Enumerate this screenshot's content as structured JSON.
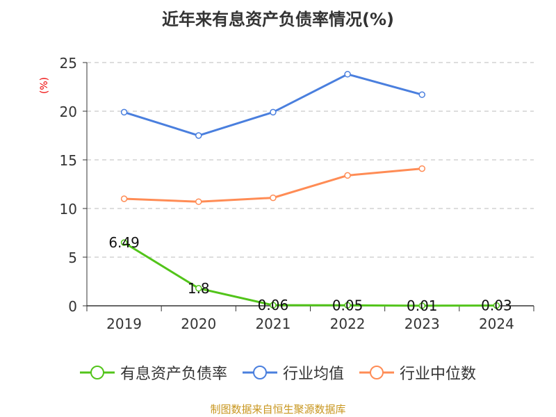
{
  "chart_data": {
    "type": "line",
    "title": "近年来有息资产负债率情况(%)",
    "ylabel": "(%)",
    "xlabel": "",
    "categories": [
      "2019",
      "2020",
      "2021",
      "2022",
      "2023",
      "2024"
    ],
    "ylim": [
      0,
      25
    ],
    "yticks": [
      "0",
      "5",
      "10",
      "15",
      "20",
      "25"
    ],
    "grid": true,
    "legend_position": "bottom",
    "series": [
      {
        "name": "有息资产负债率",
        "color": "#52c41a",
        "values": [
          6.49,
          1.8,
          0.06,
          0.05,
          0.01,
          0.03
        ],
        "labels": [
          "6.49",
          "1.8",
          "0.06",
          "0.05",
          "0.01",
          "0.03"
        ]
      },
      {
        "name": "行业均值",
        "color": "#4a7fde",
        "values": [
          19.9,
          17.5,
          19.9,
          23.8,
          21.7,
          null
        ]
      },
      {
        "name": "行业中位数",
        "color": "#ff8c55",
        "values": [
          11.0,
          10.7,
          11.1,
          13.4,
          14.1,
          null
        ]
      }
    ]
  },
  "source": "制图数据来自恒生聚源数据库"
}
